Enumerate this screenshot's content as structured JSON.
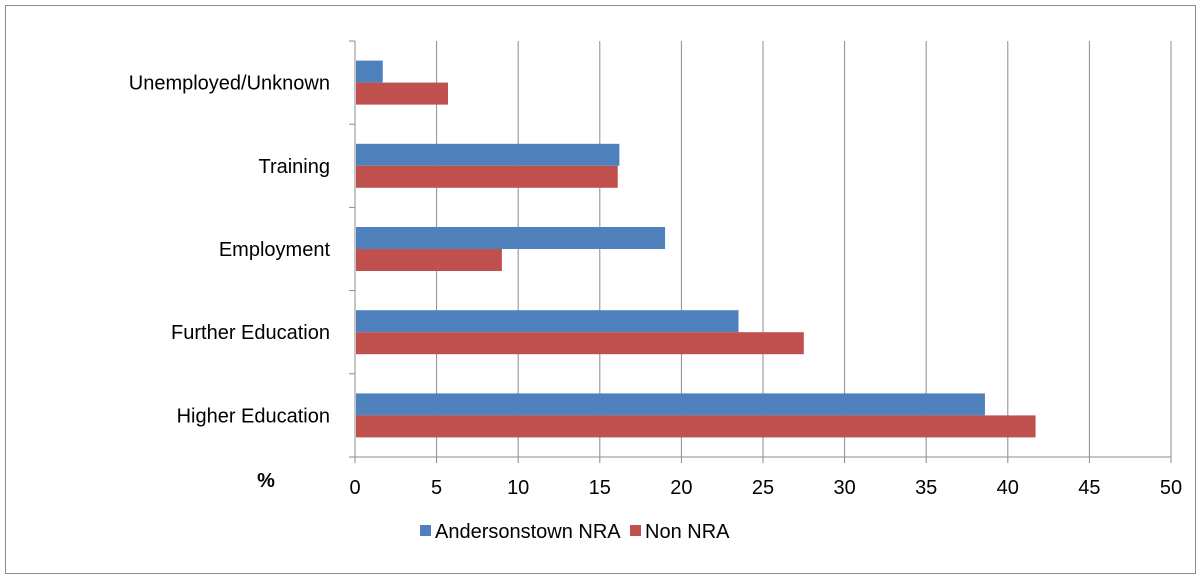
{
  "chart_data": {
    "type": "bar",
    "orientation": "horizontal",
    "categories": [
      "Unemployed/Unknown",
      "Training",
      "Employment",
      "Further Education",
      "Higher Education"
    ],
    "series": [
      {
        "name": "Andersonstown NRA",
        "color": "#4f81bd",
        "values": [
          1.7,
          16.2,
          19.0,
          23.5,
          38.6
        ]
      },
      {
        "name": "Non NRA",
        "color": "#c0504d",
        "values": [
          5.7,
          16.1,
          9.0,
          27.5,
          41.7
        ]
      }
    ],
    "xlim": [
      0,
      50
    ],
    "xticks": [
      "0",
      "5",
      "10",
      "15",
      "20",
      "25",
      "30",
      "35",
      "40",
      "45",
      "50"
    ],
    "xlabel": "%",
    "grid": "vertical",
    "legend": "bottom"
  }
}
